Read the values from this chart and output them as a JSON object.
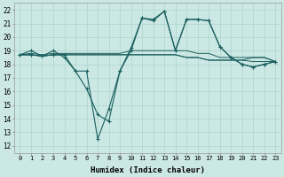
{
  "xlabel": "Humidex (Indice chaleur)",
  "bg_color": "#cce8e4",
  "grid_color": "#b0d8d0",
  "line_color": "#1a5f5f",
  "xlim": [
    -0.5,
    23.5
  ],
  "ylim": [
    11.5,
    22.5
  ],
  "xticks": [
    0,
    1,
    2,
    3,
    4,
    5,
    6,
    7,
    8,
    9,
    10,
    11,
    12,
    13,
    14,
    15,
    16,
    17,
    18,
    19,
    20,
    21,
    22,
    23
  ],
  "yticks": [
    12,
    13,
    14,
    15,
    16,
    17,
    18,
    19,
    20,
    21,
    22
  ],
  "series_with_markers": [
    [
      18.7,
      19.0,
      18.6,
      19.0,
      18.5,
      17.5,
      16.2,
      14.3,
      13.8,
      17.5,
      19.2,
      21.4,
      21.3,
      21.9,
      19.0,
      21.3,
      21.3,
      21.2,
      19.3,
      18.5,
      18.0,
      17.8,
      18.0,
      18.2
    ],
    [
      18.7,
      18.7,
      18.6,
      18.7,
      18.7,
      17.5,
      17.5,
      12.5,
      14.7,
      17.5,
      19.0,
      21.4,
      21.2,
      21.9,
      19.0,
      21.3,
      21.3,
      21.2,
      19.3,
      18.5,
      18.0,
      17.8,
      18.0,
      18.2
    ]
  ],
  "series_flat": [
    [
      18.7,
      18.8,
      18.7,
      18.8,
      18.8,
      18.8,
      18.8,
      18.8,
      18.8,
      18.8,
      19.0,
      19.0,
      19.0,
      19.0,
      19.0,
      19.0,
      18.8,
      18.8,
      18.5,
      18.5,
      18.5,
      18.5,
      18.5,
      18.2
    ],
    [
      18.7,
      18.7,
      18.6,
      18.7,
      18.7,
      18.7,
      18.7,
      18.7,
      18.7,
      18.7,
      18.7,
      18.7,
      18.7,
      18.7,
      18.7,
      18.5,
      18.5,
      18.3,
      18.3,
      18.3,
      18.3,
      18.2,
      18.2,
      18.2
    ],
    [
      18.7,
      18.7,
      18.6,
      18.7,
      18.7,
      18.7,
      18.7,
      18.7,
      18.7,
      18.7,
      18.7,
      18.7,
      18.7,
      18.7,
      18.7,
      18.5,
      18.5,
      18.3,
      18.3,
      18.3,
      18.3,
      18.5,
      18.5,
      18.2
    ]
  ]
}
